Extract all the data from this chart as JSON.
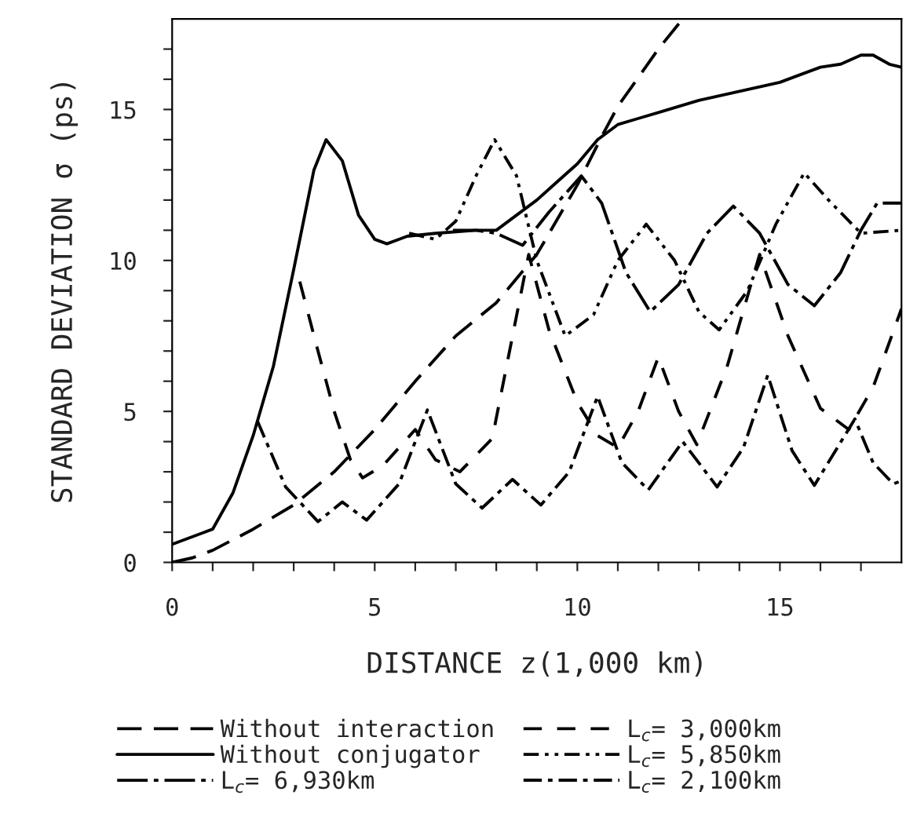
{
  "chart_data": {
    "type": "line",
    "xlabel": "DISTANCE z(1,000 km)",
    "ylabel": "STANDARD DEVIATION σ (ps)",
    "xlim": [
      0,
      18
    ],
    "ylim": [
      0,
      18
    ],
    "xticks": [
      0,
      {
        "value": 1,
        "label": null
      },
      {
        "value": 2,
        "label": null
      },
      {
        "value": 3,
        "label": null
      },
      {
        "value": 4,
        "label": null
      },
      5,
      {
        "value": 6,
        "label": null
      },
      {
        "value": 7,
        "label": null
      },
      {
        "value": 8,
        "label": null
      },
      {
        "value": 9,
        "label": null
      },
      10,
      {
        "value": 11,
        "label": null
      },
      {
        "value": 12,
        "label": null
      },
      {
        "value": 13,
        "label": null
      },
      {
        "value": 14,
        "label": null
      },
      15,
      {
        "value": 16,
        "label": null
      },
      {
        "value": 17,
        "label": null
      }
    ],
    "yticks": [
      0,
      {
        "value": 1,
        "label": null
      },
      {
        "value": 2,
        "label": null
      },
      {
        "value": 3,
        "label": null
      },
      {
        "value": 4,
        "label": null
      },
      5,
      {
        "value": 6,
        "label": null
      },
      {
        "value": 7,
        "label": null
      },
      {
        "value": 8,
        "label": null
      },
      {
        "value": 9,
        "label": null
      },
      10,
      {
        "value": 11,
        "label": null
      },
      {
        "value": 12,
        "label": null
      },
      {
        "value": 13,
        "label": null
      },
      {
        "value": 14,
        "label": null
      },
      15,
      {
        "value": 16,
        "label": null
      },
      {
        "value": 17,
        "label": null
      }
    ],
    "grid": false,
    "legend": "bottom",
    "marker": "none",
    "series": [
      {
        "name": "Without interaction",
        "color": "#000000",
        "line_style": "dashed",
        "x": [
          0,
          0.5,
          1,
          2,
          3,
          4,
          5,
          6,
          7,
          8,
          9,
          10,
          10.6,
          11,
          12,
          12.6
        ],
        "values": [
          0,
          0.15,
          0.4,
          1.1,
          1.9,
          3.0,
          4.4,
          6.0,
          7.5,
          8.6,
          10.2,
          12.5,
          14.1,
          15.1,
          17.0,
          18.0
        ]
      },
      {
        "name": "Without conjugator",
        "color": "#000000",
        "line_style": "solid",
        "x": [
          0,
          1,
          1.5,
          2,
          2.5,
          3,
          3.5,
          3.8,
          4.2,
          4.6,
          5,
          5.3,
          5.8,
          6.5,
          7.5,
          8,
          8.5,
          9,
          9.5,
          10,
          10.5,
          11,
          11.5,
          12,
          13,
          14,
          15,
          16,
          16.5,
          17,
          17.3,
          17.7,
          18
        ],
        "values": [
          0.6,
          1.1,
          2.3,
          4.2,
          6.5,
          9.7,
          13.0,
          14.0,
          13.3,
          11.5,
          10.7,
          10.55,
          10.8,
          10.9,
          11.0,
          11.0,
          11.5,
          12.0,
          12.6,
          13.2,
          14.0,
          14.5,
          14.7,
          14.9,
          15.3,
          15.6,
          15.9,
          16.4,
          16.5,
          16.8,
          16.8,
          16.5,
          16.4
        ]
      },
      {
        "name": "L$_{c}$= 6,930km",
        "color": "#000000",
        "line_style": "dashdot",
        "x": [
          6.93,
          7.5,
          8.0,
          8.65,
          9.3,
          10.1,
          10.6,
          11.2,
          11.8,
          12.5,
          13.2,
          13.85,
          14.5,
          15.2,
          15.85,
          16.5,
          17.0,
          17.4,
          18
        ],
        "values": [
          11.0,
          11.0,
          10.9,
          10.5,
          11.6,
          12.8,
          11.9,
          9.6,
          8.3,
          9.2,
          10.9,
          11.8,
          10.9,
          9.2,
          8.5,
          9.6,
          11.0,
          11.9,
          11.9
        ]
      },
      {
        "name": "L$_{c}$= 3,000km",
        "color": "#000000",
        "line_style": "dashed2",
        "x": [
          3.15,
          3.6,
          4.0,
          4.4,
          4.7,
          5.2,
          6.0,
          6.5,
          7.1,
          7.9,
          8.8,
          9.3,
          10.0,
          10.5,
          11.0,
          11.5,
          12.0,
          12.5,
          12.95,
          13.7,
          14.5,
          15.2,
          16.0,
          16.7,
          17.3,
          18
        ],
        "values": [
          9.3,
          7.0,
          5.0,
          3.4,
          2.8,
          3.2,
          4.4,
          3.4,
          3.0,
          4.1,
          10.2,
          7.7,
          5.3,
          4.2,
          3.8,
          5.0,
          6.8,
          5.0,
          3.9,
          6.5,
          10.2,
          7.5,
          5.1,
          4.4,
          5.8,
          8.4
        ]
      },
      {
        "name": "L$_{c}$= 5,850km",
        "color": "#000000",
        "line_style": "dashdotdot",
        "x": [
          5.85,
          6.5,
          7.0,
          7.5,
          7.96,
          8.5,
          9.0,
          9.7,
          10.4,
          11.0,
          11.7,
          12.4,
          13.0,
          13.5,
          14.2,
          14.9,
          15.6,
          16.2,
          17.0,
          18
        ],
        "values": [
          10.9,
          10.7,
          11.3,
          12.8,
          14.0,
          12.8,
          10.0,
          7.5,
          8.2,
          10.0,
          11.2,
          10.0,
          8.3,
          7.7,
          9.0,
          11.2,
          12.9,
          12.0,
          10.9,
          11.0
        ]
      },
      {
        "name": "L$_{c}$= 2,100km",
        "color": "#000000",
        "line_style": "dashdot2",
        "x": [
          2.1,
          2.8,
          3.6,
          4.2,
          4.8,
          5.6,
          6.3,
          7.0,
          7.65,
          8.4,
          9.1,
          9.8,
          10.5,
          11.1,
          11.75,
          12.6,
          13.45,
          14.1,
          14.7,
          15.3,
          15.85,
          16.85,
          17.3,
          17.8,
          18
        ],
        "values": [
          4.7,
          2.5,
          1.35,
          2.0,
          1.4,
          2.6,
          5.05,
          2.6,
          1.8,
          2.75,
          1.9,
          3.0,
          5.5,
          3.3,
          2.4,
          4.0,
          2.5,
          3.8,
          6.2,
          3.7,
          2.55,
          4.75,
          3.3,
          2.6,
          2.7
        ]
      }
    ]
  }
}
